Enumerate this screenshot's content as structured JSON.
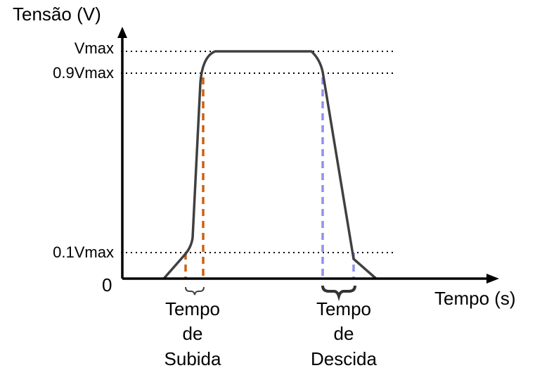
{
  "diagram": {
    "y_axis_label": "Tensão (V)",
    "x_axis_label": "Tempo (s)",
    "origin_label": "0",
    "levels": {
      "vmax": "Vmax",
      "v90": "0.9Vmax",
      "v10": "0.1Vmax"
    },
    "rise_time_label": [
      "Tempo",
      "de",
      "Subida"
    ],
    "fall_time_label": [
      "Tempo",
      "de",
      "Descida"
    ]
  },
  "colors": {
    "pulse": "#404040",
    "axis": "#000000",
    "rise_marker": "#d06010",
    "fall_marker": "#9090ee",
    "reference_lines": "#000000"
  }
}
